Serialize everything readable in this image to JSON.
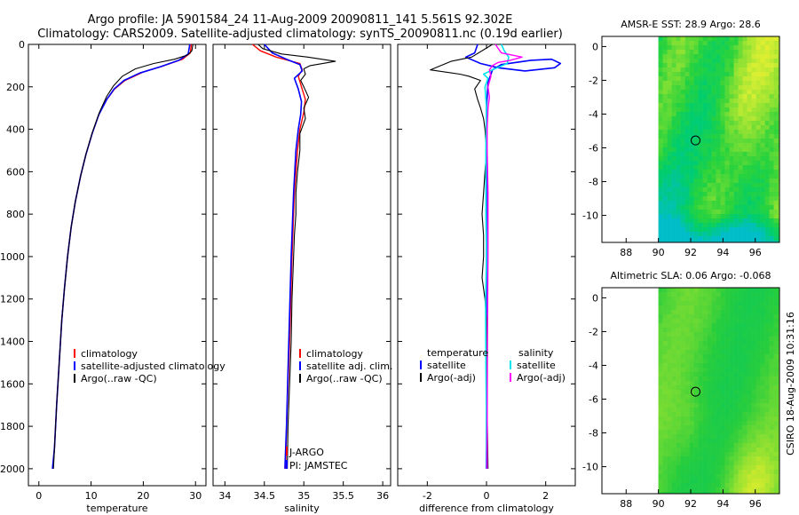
{
  "title_line1": "Argo profile: JA 5901584_24 11-Aug-2009 20090811_141 5.561S 92.302E",
  "title_line2": "Climatology: CARS2009. Satellite-adjusted climatology: synTS_20090811.nc (0.19d earlier)",
  "side_label": "CSIRO 18-Aug-2009 10:31:16",
  "colors": {
    "climatology": "#ff0000",
    "satellite": "#0000ff",
    "argo": "#000000",
    "satellite_sal": "#00e5ee",
    "argo_sal": "#ff00ff"
  },
  "chart_data": [
    {
      "type": "line",
      "id": "temperature",
      "xlabel": "temperature",
      "xlim": [
        -2,
        32
      ],
      "ylim": [
        2080,
        0
      ],
      "xticks": [
        "0",
        "10",
        "20",
        "30"
      ],
      "xtick_values": [
        0,
        10,
        20,
        30
      ],
      "yticks": [
        "0",
        "200",
        "400",
        "600",
        "800",
        "1000",
        "1200",
        "1400",
        "1600",
        "1800",
        "2000"
      ],
      "ytick_values": [
        0,
        200,
        400,
        600,
        800,
        1000,
        1200,
        1400,
        1600,
        1800,
        2000
      ],
      "legend": [
        "climatology",
        "satellite-adjusted climatology",
        "Argo(..raw -QC)"
      ],
      "series": [
        {
          "name": "climatology",
          "color": "#ff0000",
          "width": 1.4,
          "points": [
            [
              29.2,
              0
            ],
            [
              29.0,
              40
            ],
            [
              27.5,
              70
            ],
            [
              24,
              100
            ],
            [
              20,
              130
            ],
            [
              16.5,
              170
            ],
            [
              14.5,
              210
            ],
            [
              13,
              260
            ],
            [
              11.5,
              330
            ],
            [
              10.2,
              420
            ],
            [
              9,
              520
            ],
            [
              8,
              620
            ],
            [
              7,
              740
            ],
            [
              6.2,
              860
            ],
            [
              5.5,
              1000
            ],
            [
              4.9,
              1150
            ],
            [
              4.4,
              1300
            ],
            [
              3.9,
              1500
            ],
            [
              3.4,
              1700
            ],
            [
              3.0,
              1900
            ],
            [
              2.7,
              2000
            ]
          ]
        },
        {
          "name": "satellite-adjusted climatology",
          "color": "#0000ff",
          "width": 1.6,
          "points": [
            [
              28.9,
              0
            ],
            [
              28.6,
              45
            ],
            [
              26.8,
              75
            ],
            [
              23.3,
              105
            ],
            [
              19.3,
              135
            ],
            [
              16.3,
              170
            ],
            [
              14.4,
              210
            ],
            [
              13,
              260
            ],
            [
              11.5,
              330
            ],
            [
              10.2,
              420
            ],
            [
              9,
              520
            ],
            [
              8,
              620
            ],
            [
              7,
              740
            ],
            [
              6.2,
              860
            ],
            [
              5.5,
              1000
            ],
            [
              4.9,
              1150
            ],
            [
              4.4,
              1300
            ],
            [
              3.9,
              1500
            ],
            [
              3.4,
              1700
            ],
            [
              3.0,
              1900
            ],
            [
              2.6,
              2000
            ]
          ]
        },
        {
          "name": "Argo(..raw -QC)",
          "color": "#000000",
          "width": 1.1,
          "points": [
            [
              29.5,
              0
            ],
            [
              29.3,
              30
            ],
            [
              28.5,
              50
            ],
            [
              26,
              70
            ],
            [
              22,
              90
            ],
            [
              18.5,
              115
            ],
            [
              16,
              150
            ],
            [
              14.3,
              195
            ],
            [
              13,
              245
            ],
            [
              11.6,
              320
            ],
            [
              10.3,
              410
            ],
            [
              9.1,
              510
            ],
            [
              8.0,
              620
            ],
            [
              7.0,
              740
            ],
            [
              6.2,
              860
            ],
            [
              5.5,
              1000
            ],
            [
              4.9,
              1150
            ],
            [
              4.4,
              1300
            ],
            [
              3.9,
              1500
            ],
            [
              3.4,
              1700
            ],
            [
              3.0,
              1900
            ],
            [
              2.8,
              2000
            ]
          ]
        }
      ]
    },
    {
      "type": "line",
      "id": "salinity",
      "xlabel": "salinity",
      "xlim": [
        33.85,
        36.1
      ],
      "ylim": [
        2080,
        0
      ],
      "xticks": [
        "34",
        "34.5",
        "35",
        "35.5",
        "36"
      ],
      "xtick_values": [
        34,
        34.5,
        35,
        35.5,
        36
      ],
      "legend": [
        "climatology",
        "satellite adj. clim.",
        "Argo(..raw -QC)"
      ],
      "annotations": [
        "J-ARGO",
        "PI: JAMSTEC"
      ],
      "series": [
        {
          "name": "climatology",
          "color": "#ff0000",
          "width": 1.4,
          "points": [
            [
              34.35,
              0
            ],
            [
              34.45,
              30
            ],
            [
              34.65,
              60
            ],
            [
              34.95,
              90
            ],
            [
              34.98,
              120
            ],
            [
              34.93,
              150
            ],
            [
              34.97,
              200
            ],
            [
              35.02,
              260
            ],
            [
              35.0,
              320
            ],
            [
              34.95,
              400
            ],
            [
              34.92,
              500
            ],
            [
              34.88,
              700
            ],
            [
              34.85,
              1000
            ],
            [
              34.82,
              1400
            ],
            [
              34.78,
              1800
            ],
            [
              34.77,
              2000
            ]
          ]
        },
        {
          "name": "satellite adj. clim.",
          "color": "#0000ff",
          "width": 1.6,
          "points": [
            [
              34.5,
              0
            ],
            [
              34.6,
              40
            ],
            [
              34.78,
              70
            ],
            [
              34.95,
              95
            ],
            [
              34.98,
              125
            ],
            [
              34.88,
              160
            ],
            [
              34.93,
              210
            ],
            [
              34.97,
              270
            ],
            [
              34.96,
              330
            ],
            [
              34.93,
              400
            ],
            [
              34.9,
              500
            ],
            [
              34.87,
              700
            ],
            [
              34.84,
              1000
            ],
            [
              34.81,
              1400
            ],
            [
              34.78,
              1800
            ],
            [
              34.76,
              2000
            ]
          ]
        },
        {
          "name": "Argo(..raw -QC)",
          "color": "#000000",
          "width": 1.1,
          "points": [
            [
              34.42,
              0
            ],
            [
              34.48,
              20
            ],
            [
              34.72,
              45
            ],
            [
              35.05,
              60
            ],
            [
              35.4,
              80
            ],
            [
              35.08,
              100
            ],
            [
              35.0,
              115
            ],
            [
              35.02,
              140
            ],
            [
              34.96,
              170
            ],
            [
              35.0,
              200
            ],
            [
              35.06,
              250
            ],
            [
              35.0,
              300
            ],
            [
              35.02,
              350
            ],
            [
              34.95,
              420
            ],
            [
              34.95,
              500
            ],
            [
              34.92,
              600
            ],
            [
              34.9,
              700
            ],
            [
              34.9,
              800
            ],
            [
              34.88,
              900
            ],
            [
              34.87,
              1000
            ],
            [
              34.85,
              1200
            ],
            [
              34.84,
              1400
            ],
            [
              34.82,
              1600
            ],
            [
              34.8,
              1800
            ],
            [
              34.79,
              2000
            ]
          ]
        }
      ]
    },
    {
      "type": "line",
      "id": "difference",
      "xlabel": "difference from climatology",
      "xlim": [
        -3.0,
        3.0
      ],
      "ylim": [
        2080,
        0
      ],
      "xticks": [
        "-2",
        "0",
        "2"
      ],
      "xtick_values": [
        -2,
        0,
        2
      ],
      "legend_titles": [
        "temperature",
        "salinity"
      ],
      "legend": [
        "satellite",
        "Argo(-adj)",
        "satellite",
        "Argo(-adj)"
      ],
      "series": [
        {
          "name": "temperature satellite",
          "color": "#0000ff",
          "width": 1.6,
          "points": [
            [
              -0.3,
              0
            ],
            [
              -0.4,
              40
            ],
            [
              -0.7,
              60
            ],
            [
              -0.2,
              90
            ],
            [
              0.4,
              110
            ],
            [
              1.3,
              125
            ],
            [
              2.3,
              110
            ],
            [
              2.5,
              90
            ],
            [
              2.2,
              70
            ],
            [
              1.5,
              75
            ],
            [
              0.5,
              95
            ],
            [
              0.2,
              120
            ],
            [
              0.05,
              180
            ],
            [
              0,
              300
            ],
            [
              0,
              500
            ],
            [
              0,
              1000
            ],
            [
              0,
              1500
            ],
            [
              0,
              2000
            ]
          ]
        },
        {
          "name": "temperature Argo(-adj)",
          "color": "#000000",
          "width": 1.1,
          "points": [
            [
              0.2,
              0
            ],
            [
              -0.5,
              60
            ],
            [
              -1.2,
              80
            ],
            [
              -1.9,
              120
            ],
            [
              -0.9,
              140
            ],
            [
              -0.6,
              150
            ],
            [
              -0.2,
              170
            ],
            [
              -0.4,
              210
            ],
            [
              -0.3,
              260
            ],
            [
              -0.2,
              300
            ],
            [
              -0.1,
              350
            ],
            [
              -0.05,
              400
            ],
            [
              0,
              500
            ],
            [
              -0.05,
              600
            ],
            [
              -0.1,
              700
            ],
            [
              -0.15,
              800
            ],
            [
              -0.1,
              900
            ],
            [
              -0.1,
              1000
            ],
            [
              -0.15,
              1100
            ],
            [
              -0.05,
              1200
            ],
            [
              0,
              1300
            ],
            [
              0,
              1500
            ],
            [
              0.05,
              2000
            ]
          ]
        },
        {
          "name": "salinity satellite",
          "color": "#00e5ee",
          "width": 1.6,
          "points": [
            [
              0.5,
              0
            ],
            [
              0.6,
              30
            ],
            [
              0.75,
              60
            ],
            [
              0.7,
              90
            ],
            [
              0.2,
              120
            ],
            [
              -0.1,
              140
            ],
            [
              0.05,
              160
            ],
            [
              -0.05,
              200
            ],
            [
              0,
              300
            ],
            [
              -0.02,
              500
            ],
            [
              -0.02,
              800
            ],
            [
              0,
              1000
            ],
            [
              -0.03,
              1200
            ],
            [
              -0.02,
              1500
            ],
            [
              0,
              1800
            ],
            [
              0.02,
              2000
            ]
          ]
        },
        {
          "name": "salinity Argo(-adj)",
          "color": "#ff00ff",
          "width": 1.4,
          "points": [
            [
              0.3,
              0
            ],
            [
              0.5,
              40
            ],
            [
              1.2,
              60
            ],
            [
              0.8,
              75
            ],
            [
              0.4,
              85
            ],
            [
              0.2,
              100
            ],
            [
              0.1,
              120
            ],
            [
              0.15,
              150
            ],
            [
              0.05,
              200
            ],
            [
              0.1,
              250
            ],
            [
              0.05,
              300
            ],
            [
              0.02,
              400
            ],
            [
              0.02,
              500
            ],
            [
              0.05,
              700
            ],
            [
              0.05,
              1000
            ],
            [
              0.03,
              1400
            ],
            [
              0.02,
              2000
            ]
          ]
        }
      ]
    },
    {
      "type": "heatmap",
      "id": "sst_map",
      "title": "AMSR-E SST: 28.9 Argo: 28.6",
      "xlim": [
        86.5,
        97.5
      ],
      "ylim": [
        -11.6,
        0.6
      ],
      "xticks": [
        "88",
        "90",
        "92",
        "94",
        "96"
      ],
      "xtick_values": [
        88,
        90,
        92,
        94,
        96
      ],
      "yticks": [
        "0",
        "-2",
        "-4",
        "-6",
        "-8",
        "-10"
      ],
      "ytick_values": [
        0,
        -2,
        -4,
        -6,
        -8,
        -10
      ],
      "data_xmin": 90.0,
      "argo_position": [
        92.302,
        -5.561
      ]
    },
    {
      "type": "heatmap",
      "id": "sla_map",
      "title": "Altimetric SLA: 0.06 Argo: -0.068",
      "xlim": [
        86.5,
        97.5
      ],
      "ylim": [
        -11.6,
        0.6
      ],
      "xticks": [
        "88",
        "90",
        "92",
        "94",
        "96"
      ],
      "xtick_values": [
        88,
        90,
        92,
        94,
        96
      ],
      "yticks": [
        "0",
        "-2",
        "-4",
        "-6",
        "-8",
        "-10"
      ],
      "ytick_values": [
        0,
        -2,
        -4,
        -6,
        -8,
        -10
      ],
      "data_xmin": 90.0,
      "argo_position": [
        92.302,
        -5.561
      ]
    }
  ]
}
